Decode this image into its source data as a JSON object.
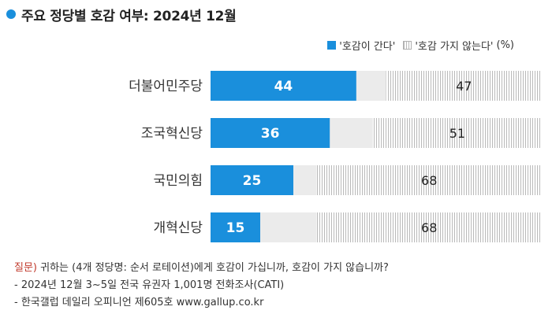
{
  "header": {
    "title": "주요 정당별 호감 여부: 2024년 12월"
  },
  "legend": {
    "item1": "'호감이 간다'",
    "item2": "'호감 가지 않는다'",
    "unit": "(%)"
  },
  "colors": {
    "positive": "#1a8fdc",
    "negative_hatch": "#b9b9b9",
    "title_dot": "#1a8fdc",
    "question_label": "#c0392b"
  },
  "chart_data": {
    "type": "bar",
    "orientation": "horizontal-stacked",
    "categories": [
      "더불어민주당",
      "조국혁신당",
      "국민의힘",
      "개혁신당"
    ],
    "series": [
      {
        "name": "'호감이 간다'",
        "values": [
          44,
          36,
          25,
          15
        ]
      },
      {
        "name": "'호감 가지 않는다'",
        "values": [
          47,
          51,
          68,
          68
        ]
      }
    ],
    "xlim": [
      0,
      100
    ],
    "grid": false,
    "legend_position": "top-right"
  },
  "footer": {
    "question_label": "질문)",
    "question_text": " 귀하는 (4개 정당명: 순서 로테이션)에게 호감이 가십니까, 호감이 가지 않습니까?",
    "survey_info": "- 2024년 12월 3~5일 전국 유권자 1,001명 전화조사(CATI)",
    "source": "- 한국갤럽 데일리 오피니언 제605호 www.gallup.co.kr"
  }
}
